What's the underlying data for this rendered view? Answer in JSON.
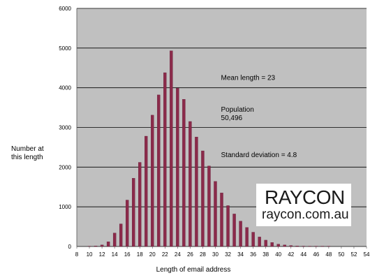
{
  "chart_data": {
    "type": "bar",
    "title": "",
    "xlabel": "Length of email address",
    "ylabel": [
      "Number at",
      "this length"
    ],
    "ylim": [
      0,
      6000
    ],
    "yticks": [
      0,
      1000,
      2000,
      3000,
      4000,
      5000,
      6000
    ],
    "xlim": [
      8,
      54
    ],
    "xticks": [
      8,
      10,
      12,
      14,
      16,
      18,
      20,
      22,
      24,
      26,
      28,
      30,
      32,
      34,
      36,
      38,
      40,
      42,
      44,
      46,
      48,
      50,
      52,
      54
    ],
    "grid": true,
    "x": [
      10,
      11,
      12,
      13,
      14,
      15,
      16,
      17,
      18,
      19,
      20,
      21,
      22,
      23,
      24,
      25,
      26,
      27,
      28,
      29,
      30,
      31,
      32,
      33,
      34,
      35,
      36,
      37,
      38,
      39,
      40,
      41,
      42,
      43,
      44,
      45,
      46,
      47,
      48
    ],
    "values": [
      5,
      15,
      40,
      120,
      340,
      570,
      1170,
      1720,
      2120,
      2780,
      3310,
      3820,
      4380,
      4930,
      3990,
      3710,
      3150,
      2760,
      2410,
      2030,
      1640,
      1350,
      1030,
      820,
      640,
      480,
      360,
      240,
      160,
      100,
      60,
      40,
      25,
      15,
      10,
      5,
      3,
      2,
      1
    ],
    "colors": {
      "bar": "#8b2a4a",
      "plot_bg": "#c0c0c0",
      "grid": "#000000"
    },
    "annotations": [
      {
        "lines": [
          "Mean length = 23"
        ],
        "at": [
          32,
          4200
        ]
      },
      {
        "lines": [
          "Population",
          "50,496"
        ],
        "at": [
          32,
          3400
        ]
      },
      {
        "lines": [
          "Standard deviation = 4.8"
        ],
        "at": [
          32,
          2250
        ]
      }
    ]
  },
  "logo": {
    "mark": "RAYCON",
    "url": "raycon.com.au"
  }
}
